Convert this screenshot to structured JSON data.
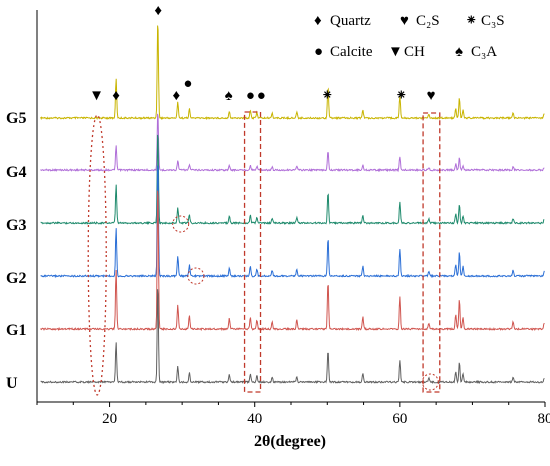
{
  "chart_data": {
    "type": "line",
    "xlabel": "2θ(degree)",
    "ylabel": "",
    "xlim": [
      10,
      80
    ],
    "x_ticks": [
      "20",
      "40",
      "60",
      "80"
    ],
    "x_tick_values": [
      20,
      40,
      60,
      80
    ],
    "series": [
      {
        "name": "G5",
        "color": "#c8b400"
      },
      {
        "name": "G4",
        "color": "#b06fd8"
      },
      {
        "name": "G3",
        "color": "#1e8a6c"
      },
      {
        "name": "G2",
        "color": "#2b6fd6"
      },
      {
        "name": "G1",
        "color": "#d0554f"
      },
      {
        "name": "U",
        "color": "#606060"
      }
    ],
    "peaks": [
      {
        "x": 20.9,
        "h": 0.4
      },
      {
        "x": 26.65,
        "h": 1.0
      },
      {
        "x": 29.4,
        "h": 0.16
      },
      {
        "x": 31.0,
        "h": 0.09
      },
      {
        "x": 36.5,
        "h": 0.07
      },
      {
        "x": 39.4,
        "h": 0.08
      },
      {
        "x": 40.3,
        "h": 0.06
      },
      {
        "x": 42.4,
        "h": 0.05
      },
      {
        "x": 45.8,
        "h": 0.06
      },
      {
        "x": 50.1,
        "h": 0.32
      },
      {
        "x": 54.9,
        "h": 0.08
      },
      {
        "x": 60.0,
        "h": 0.22
      },
      {
        "x": 64.0,
        "h": 0.04
      },
      {
        "x": 67.7,
        "h": 0.1
      },
      {
        "x": 68.2,
        "h": 0.2
      },
      {
        "x": 68.7,
        "h": 0.08
      },
      {
        "x": 75.6,
        "h": 0.05
      },
      {
        "x": 79.9,
        "h": 0.04
      }
    ],
    "peak_markers": [
      {
        "symbol": "▼",
        "x": 18.2,
        "row": "G5"
      },
      {
        "symbol": "♦",
        "x": 20.9,
        "row": "G5"
      },
      {
        "symbol": "♦",
        "x": 26.7,
        "row": "top"
      },
      {
        "symbol": "♦",
        "x": 29.2,
        "row": "G5"
      },
      {
        "symbol": "●",
        "x": 30.8,
        "row": "G5b"
      },
      {
        "symbol": "♠",
        "x": 36.4,
        "row": "G5"
      },
      {
        "symbol": "●",
        "x": 39.4,
        "row": "G5"
      },
      {
        "symbol": "●",
        "x": 40.9,
        "row": "G5"
      },
      {
        "symbol": "⁕",
        "x": 50.0,
        "row": "G5"
      },
      {
        "symbol": "⁕",
        "x": 60.2,
        "row": "G5"
      },
      {
        "symbol": "♥",
        "x": 64.3,
        "row": "G5"
      }
    ],
    "legend": [
      {
        "symbol": "♦",
        "label": "Quartz"
      },
      {
        "symbol": "♥",
        "label": "C₂S"
      },
      {
        "symbol": "⁕",
        "label": "C₃S"
      },
      {
        "symbol": "●",
        "label": "Calcite"
      },
      {
        "symbol": "▼",
        "label": "CH"
      },
      {
        "symbol": "♠",
        "label": "C₃A"
      }
    ],
    "legend_placement": "top-right",
    "grid": false
  }
}
